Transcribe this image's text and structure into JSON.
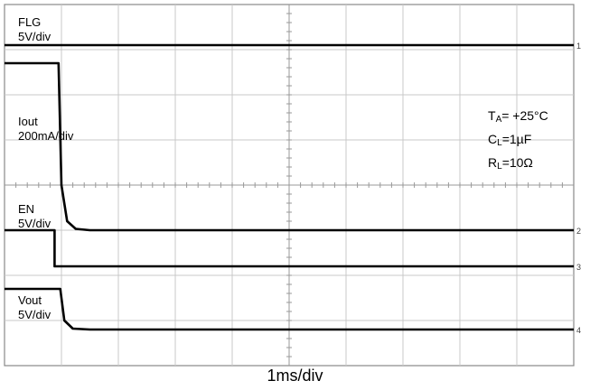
{
  "chart_data": {
    "type": "line",
    "title": "",
    "xlabel": "1ms/div",
    "time_divisions": 10,
    "amplitude_divisions": 8,
    "grid": true,
    "traces": [
      {
        "name": "FLG",
        "scale": "5V/div",
        "marker": "1",
        "label_line1": "FLG",
        "label_line2": "5V/div",
        "points_div": [
          [
            0,
            7.1
          ],
          [
            10,
            7.1
          ]
        ]
      },
      {
        "name": "Iout",
        "scale": "200mA/div",
        "marker": "2",
        "label_line1": "Iout",
        "label_line2": "200mA/div",
        "points_div": [
          [
            0,
            6.7
          ],
          [
            0.95,
            6.7
          ],
          [
            1.0,
            4.0
          ],
          [
            1.1,
            3.2
          ],
          [
            1.25,
            3.03
          ],
          [
            1.5,
            3.0
          ],
          [
            10,
            3.0
          ]
        ]
      },
      {
        "name": "EN",
        "scale": "5V/div",
        "marker": "3",
        "label_line1": "EN",
        "label_line2": "5V/div",
        "points_div": [
          [
            0,
            3.0
          ],
          [
            0.88,
            3.0
          ],
          [
            0.88,
            2.2
          ],
          [
            10,
            2.2
          ]
        ]
      },
      {
        "name": "Vout",
        "scale": "5V/div",
        "marker": "4",
        "label_line1": "Vout",
        "label_line2": "5V/div",
        "points_div": [
          [
            0,
            1.7
          ],
          [
            0.98,
            1.7
          ],
          [
            1.05,
            1.0
          ],
          [
            1.2,
            0.82
          ],
          [
            1.5,
            0.8
          ],
          [
            10,
            0.8
          ]
        ]
      }
    ],
    "conditions": {
      "ta": {
        "sym": "T",
        "sub": "A",
        "val": "= +25°C"
      },
      "cl": {
        "sym": "C",
        "sub": "L",
        "val": "=1µF"
      },
      "rl": {
        "sym": "R",
        "sub": "L",
        "val": "=10Ω"
      }
    }
  }
}
